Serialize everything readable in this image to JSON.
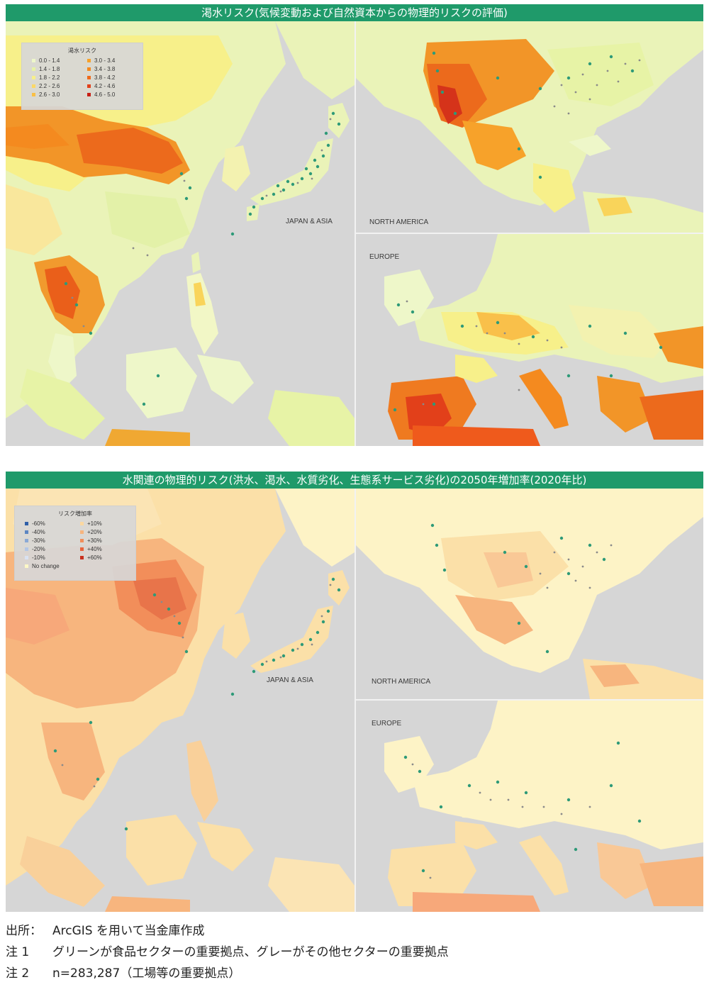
{
  "map1": {
    "title": "渇水リスク(気候変動および自然資本からの物理的リスクの評価)",
    "legend": {
      "title": "渇水リスク",
      "items": [
        {
          "label": "0.0 - 1.4",
          "color": "#eef7c9"
        },
        {
          "label": "3.0 - 3.4",
          "color": "#f7a22a"
        },
        {
          "label": "1.4 - 1.8",
          "color": "#e7f3a6"
        },
        {
          "label": "3.4 - 3.8",
          "color": "#f48a1f"
        },
        {
          "label": "1.8 - 2.2",
          "color": "#f7f08a"
        },
        {
          "label": "3.8 - 4.2",
          "color": "#ef6a1a"
        },
        {
          "label": "2.2 - 2.6",
          "color": "#fbd867"
        },
        {
          "label": "4.2 - 4.6",
          "color": "#e2401a"
        },
        {
          "label": "2.6 - 3.0",
          "color": "#f9bf45"
        },
        {
          "label": "4.6 - 5.0",
          "color": "#c81e14"
        }
      ]
    },
    "labels": {
      "asia": "JAPAN & ASIA",
      "na": "NORTH AMERICA",
      "eu": "EUROPE"
    }
  },
  "map2": {
    "title": "水関連の物理的リスク(洪水、渇水、水質劣化、生態系サービス劣化)の2050年増加率(2020年比)",
    "legend": {
      "title": "リスク増加率",
      "items": [
        {
          "label": "-60%",
          "color": "#2f5fa8"
        },
        {
          "label": "+10%",
          "color": "#fbd8a0"
        },
        {
          "label": "-40%",
          "color": "#5c86c2"
        },
        {
          "label": "+20%",
          "color": "#f7b57e"
        },
        {
          "label": "-30%",
          "color": "#8aa9d6"
        },
        {
          "label": "+30%",
          "color": "#f28e5a"
        },
        {
          "label": "-20%",
          "color": "#b3c7e6"
        },
        {
          "label": "+40%",
          "color": "#e8633b"
        },
        {
          "label": "-10%",
          "color": "#d9e2f2"
        },
        {
          "label": "+60%",
          "color": "#c8301e"
        },
        {
          "label": "No change",
          "color": "#fdf8c6"
        }
      ]
    },
    "labels": {
      "asia": "JAPAN & ASIA",
      "na": "NORTH AMERICA",
      "eu": "EUROPE"
    }
  },
  "notes": [
    {
      "label": "出所：",
      "text": "ArcGIS を用いて当金庫作成"
    },
    {
      "label": "注 1",
      "text": "グリーンが食品セクターの重要拠点、グレーがその他セクターの重要拠点"
    },
    {
      "label": "注 2",
      "text": "n=283,287（工場等の重要拠点）"
    }
  ],
  "colors": {
    "title_bar": "#1f9a6a",
    "ocean": "#d6d6d6",
    "site_food": "#2e9a78",
    "site_other": "#8a8a8a"
  }
}
